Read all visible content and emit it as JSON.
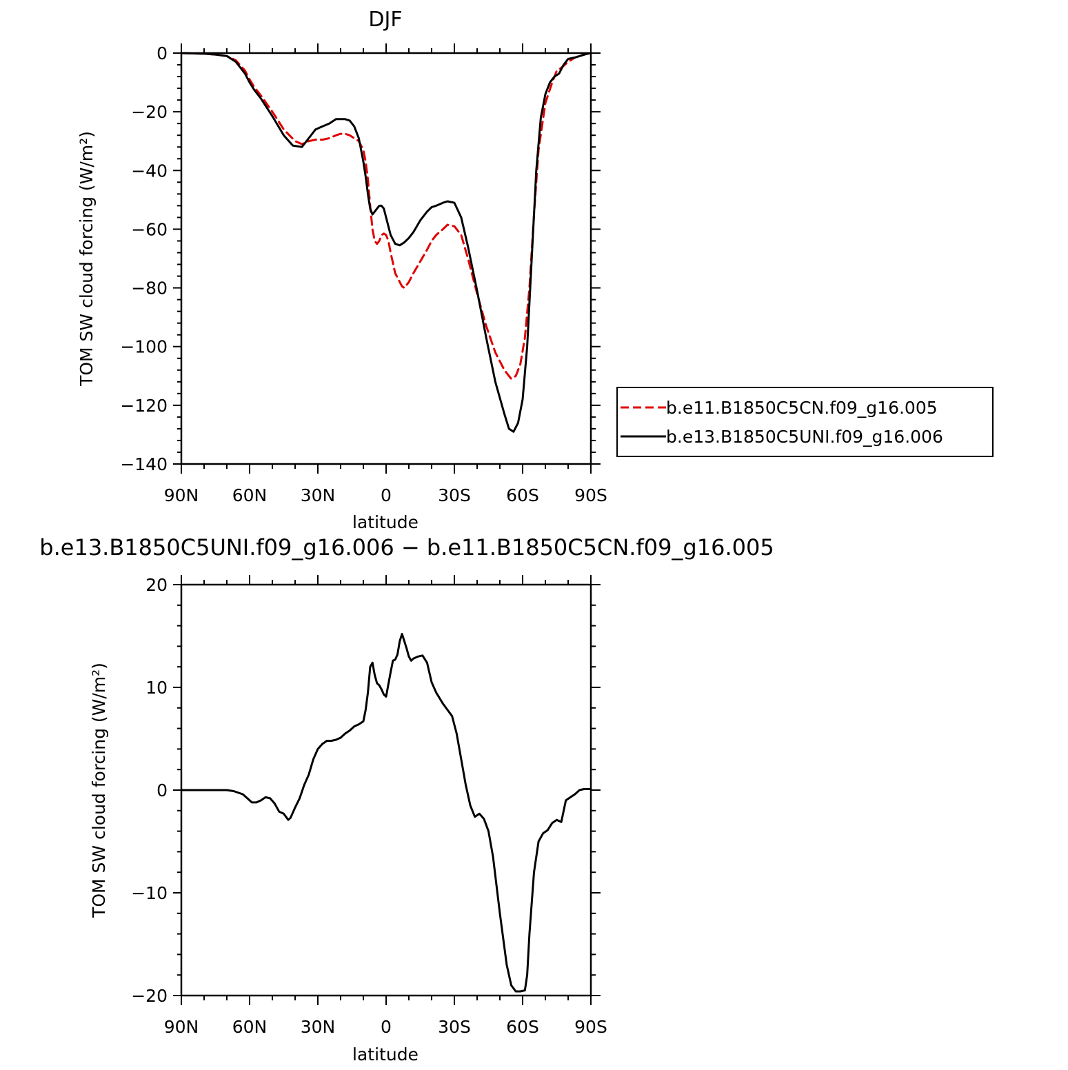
{
  "chart_data": [
    {
      "type": "line",
      "title": "DJF",
      "xlabel": "latitude",
      "ylabel": "TOM SW cloud forcing (W/m²)",
      "xlim": [
        -90,
        90
      ],
      "ylim": [
        -140,
        0
      ],
      "x_ticks": [
        -90,
        -60,
        -30,
        0,
        30,
        60,
        90
      ],
      "x_tick_labels": [
        "90N",
        "60N",
        "30N",
        "0",
        "30S",
        "60S",
        "90S"
      ],
      "y_ticks": [
        0,
        -20,
        -40,
        -60,
        -80,
        -100,
        -120,
        -140
      ],
      "y_tick_labels": [
        "0",
        "−20",
        "−40",
        "−60",
        "−80",
        "−100",
        "−120",
        "−140"
      ],
      "legend_position": "right",
      "series": [
        {
          "name": "b.e11.B1850C5CN.f09_g16.005",
          "color": "#e00000",
          "dash": true,
          "x": [
            -90,
            -80,
            -75,
            -70,
            -66,
            -62,
            -60,
            -58,
            -55,
            -50,
            -45,
            -40,
            -37,
            -34,
            -31,
            -28,
            -25,
            -22,
            -20,
            -18,
            -16,
            -14,
            -12,
            -10,
            -9,
            -8,
            -7,
            -6,
            -5,
            -4,
            -3,
            -2,
            -1,
            0,
            1,
            2,
            4,
            6,
            7,
            8,
            10,
            12,
            15,
            18,
            20,
            22,
            25,
            27,
            30,
            33,
            36,
            40,
            44,
            48,
            52,
            54,
            55,
            57,
            59,
            61,
            63,
            65,
            67,
            70,
            73,
            75,
            77,
            80,
            83,
            86,
            88,
            90
          ],
          "y": [
            0,
            -0.2,
            -0.5,
            -1,
            -2.5,
            -6,
            -9,
            -11.5,
            -14.5,
            -20,
            -26,
            -30,
            -31,
            -30,
            -29.5,
            -29.5,
            -29,
            -28,
            -27.5,
            -27.5,
            -28,
            -29,
            -30,
            -33,
            -37,
            -43,
            -52,
            -60,
            -64,
            -65,
            -64,
            -62,
            -61.5,
            -62,
            -64,
            -68,
            -75,
            -78,
            -79.5,
            -80,
            -78,
            -75,
            -71,
            -67,
            -64,
            -62,
            -60,
            -58.5,
            -59,
            -62,
            -70,
            -82,
            -93,
            -102,
            -108,
            -110,
            -111,
            -110,
            -106,
            -97,
            -80,
            -55,
            -33,
            -17,
            -10,
            -6,
            -5,
            -3,
            -1.5,
            -0.7,
            -0.3,
            0
          ]
        },
        {
          "name": "b.e13.B1850C5UNI.f09_g16.006",
          "color": "#000000",
          "dash": false,
          "x": [
            -90,
            -80,
            -75,
            -70,
            -66,
            -62,
            -60,
            -58,
            -55,
            -50,
            -45,
            -41,
            -37,
            -34,
            -31,
            -28,
            -25,
            -22,
            -20,
            -18,
            -16,
            -14,
            -12,
            -10,
            -9,
            -8,
            -7,
            -6,
            -5,
            -4,
            -3,
            -2,
            -1,
            0,
            1,
            2,
            4,
            6,
            7,
            8,
            10,
            12,
            15,
            18,
            20,
            22,
            25,
            27,
            30,
            33,
            36,
            40,
            44,
            48,
            52,
            54,
            56,
            58,
            60,
            62,
            64,
            66,
            68,
            70,
            72,
            74,
            76,
            78,
            80,
            83,
            86,
            88,
            90
          ],
          "y": [
            0,
            -0.2,
            -0.5,
            -1,
            -3,
            -7,
            -10,
            -12.5,
            -15.5,
            -21.5,
            -28,
            -31.5,
            -32,
            -29,
            -26,
            -25,
            -24,
            -22.5,
            -22.5,
            -22.5,
            -23,
            -25,
            -29,
            -37,
            -42,
            -48,
            -53,
            -55,
            -54,
            -53,
            -52,
            -52,
            -53,
            -56,
            -59,
            -62,
            -65,
            -65.5,
            -65,
            -64.5,
            -63,
            -61,
            -57,
            -54,
            -52.5,
            -52,
            -51,
            -50.5,
            -51,
            -56,
            -66,
            -81,
            -97,
            -112,
            -123,
            -128,
            -129,
            -126,
            -118,
            -100,
            -70,
            -40,
            -22,
            -14,
            -10,
            -8,
            -7,
            -4,
            -2,
            -1.5,
            -0.8,
            -0.3,
            0
          ]
        }
      ]
    },
    {
      "type": "line",
      "title": "b.e13.B1850C5UNI.f09_g16.006 − b.e11.B1850C5CN.f09_g16.005",
      "xlabel": "latitude",
      "ylabel": "TOM SW cloud forcing (W/m²)",
      "xlim": [
        -90,
        90
      ],
      "ylim": [
        -20,
        20
      ],
      "x_ticks": [
        -90,
        -60,
        -30,
        0,
        30,
        60,
        90
      ],
      "x_tick_labels": [
        "90N",
        "60N",
        "30N",
        "0",
        "30S",
        "60S",
        "90S"
      ],
      "y_ticks": [
        20,
        10,
        0,
        -10,
        -20
      ],
      "y_tick_labels": [
        "20",
        "10",
        "0",
        "−10",
        "−20"
      ],
      "series": [
        {
          "color": "#000000",
          "dash": false,
          "x": [
            -90,
            -80,
            -75,
            -70,
            -67,
            -63,
            -61,
            -59,
            -57,
            -55,
            -53,
            -51,
            -49,
            -47,
            -45,
            -43,
            -42,
            -40,
            -38,
            -36,
            -34,
            -32,
            -30,
            -28,
            -26,
            -24,
            -22,
            -20,
            -18,
            -16,
            -14,
            -12,
            -10,
            -9,
            -8,
            -7,
            -6,
            -5,
            -4,
            -3,
            -2,
            -1,
            0,
            1,
            2,
            3,
            4,
            5,
            6,
            7,
            8,
            9,
            10,
            11,
            12,
            14,
            16,
            18,
            20,
            22,
            25,
            27,
            29,
            31,
            33,
            35,
            37,
            39,
            41,
            43,
            45,
            47,
            50,
            53,
            55,
            57,
            59,
            61,
            62,
            63,
            65,
            67,
            69,
            71,
            73,
            75,
            77,
            79,
            81,
            83,
            85,
            87,
            90
          ],
          "y": [
            0,
            0,
            0,
            0,
            -0.1,
            -0.4,
            -0.8,
            -1.2,
            -1.2,
            -1,
            -0.7,
            -0.8,
            -1.3,
            -2.1,
            -2.3,
            -2.9,
            -2.7,
            -1.7,
            -0.8,
            0.5,
            1.5,
            3,
            4,
            4.5,
            4.8,
            4.8,
            4.9,
            5.1,
            5.5,
            5.8,
            6.2,
            6.4,
            6.7,
            7.8,
            9.5,
            12,
            12.4,
            11.2,
            10.4,
            10.2,
            9.8,
            9.3,
            9.1,
            10.3,
            11.5,
            12.6,
            12.7,
            13.2,
            14.5,
            15.2,
            14.5,
            13.8,
            13,
            12.6,
            12.8,
            13,
            13.1,
            12.4,
            10.5,
            9.5,
            8.4,
            7.8,
            7.2,
            5.5,
            3,
            0.5,
            -1.5,
            -2.6,
            -2.3,
            -2.8,
            -4,
            -6.5,
            -12,
            -17,
            -19,
            -19.6,
            -19.6,
            -19.5,
            -18,
            -14,
            -8,
            -5,
            -4.2,
            -3.9,
            -3.2,
            -2.9,
            -3.1,
            -1,
            -0.7,
            -0.4,
            0,
            0.1,
            0.1
          ]
        }
      ]
    }
  ],
  "legend": {
    "items": [
      {
        "label": "b.e11.B1850C5CN.f09_g16.005",
        "color": "#e00000",
        "dash": true
      },
      {
        "label": "b.e13.B1850C5UNI.f09_g16.006",
        "color": "#000000",
        "dash": false
      }
    ]
  }
}
